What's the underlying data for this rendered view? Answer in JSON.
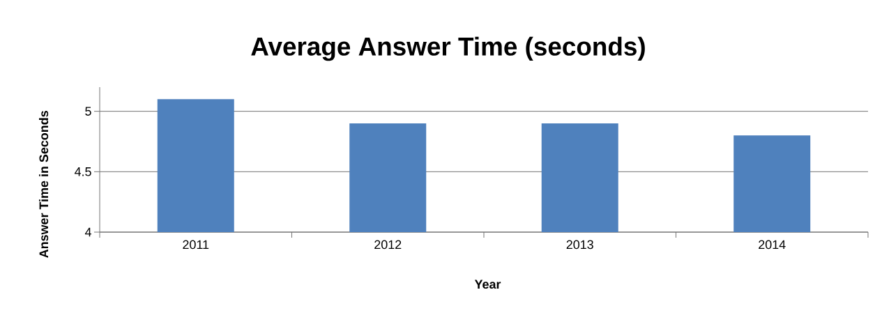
{
  "chart_data": {
    "type": "bar",
    "title": "Average Answer Time (seconds)",
    "xlabel": "Year",
    "ylabel": "Answer Time in Seconds",
    "categories": [
      "2011",
      "2012",
      "2013",
      "2014"
    ],
    "values": [
      5.1,
      4.9,
      4.9,
      4.8
    ],
    "color": "#4f81bd",
    "ylim": [
      4,
      5.2
    ],
    "yticks": [
      4,
      4.5,
      5
    ],
    "grid": "y"
  }
}
